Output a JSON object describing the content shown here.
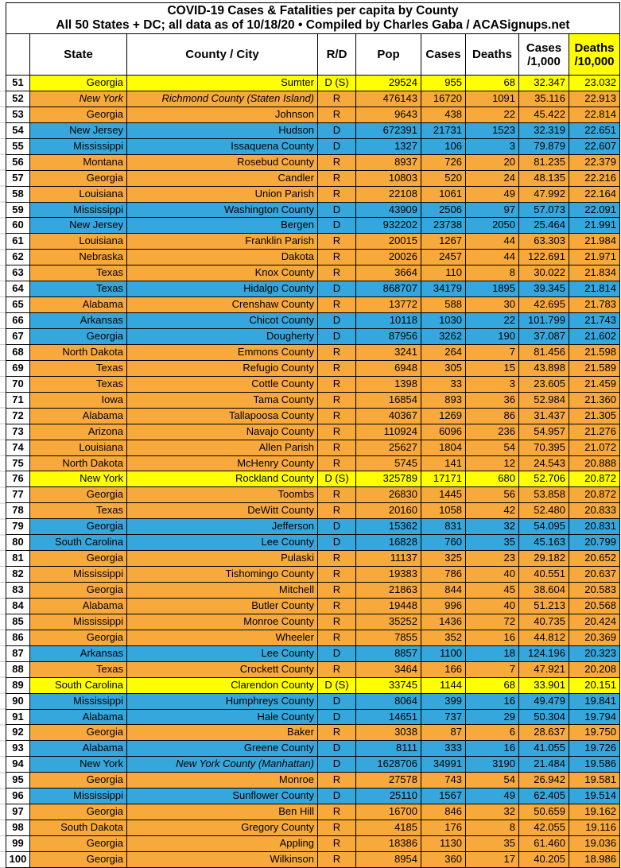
{
  "title": {
    "line1": "COVID-19 Cases & Fatalities per capita by County",
    "line2": "All 50 States + DC; all data as of 10/18/20  • Compiled by Charles Gaba / ACASignups.net"
  },
  "header": {
    "rank": "",
    "state": "State",
    "county": "County / City",
    "rd": "R/D",
    "pop": "Pop",
    "cases": "Cases",
    "deaths": "Deaths",
    "cases_per_1000_l1": "Cases",
    "cases_per_1000_l2": "/1,000",
    "deaths_per_10000_l1": "Deaths",
    "deaths_per_10000_l2": "/10,000"
  },
  "colors": {
    "republican_row": "#F8A93C",
    "democrat_row": "#35A7DD",
    "swing_row": "#FFFF00",
    "grid_line": "#000000"
  },
  "chart_data": {
    "type": "table",
    "title": "COVID-19 Cases & Fatalities per capita by County",
    "subtitle": "All 50 States + DC; all data as of 10/18/20 • Compiled by Charles Gaba / ACASignups.net",
    "columns": [
      "#",
      "State",
      "County / City",
      "R/D",
      "Pop",
      "Cases",
      "Deaths",
      "Cases /1,000",
      "Deaths /10,000"
    ],
    "row_color_legend": {
      "R": "republican_row",
      "D": "democrat_row",
      "D (S)": "swing_row"
    },
    "rows": [
      {
        "rank": 51,
        "state": "Georgia",
        "county": "Sumter",
        "rd": "D (S)",
        "pop": "29524",
        "cases": "955",
        "deaths": "68",
        "cases_per_1000": "32.347",
        "deaths_per_10000": "23.032"
      },
      {
        "rank": 52,
        "state": "New York",
        "county": "Richmond County (Staten Island)",
        "rd": "R",
        "pop": "476143",
        "cases": "16720",
        "deaths": "1091",
        "cases_per_1000": "35.116",
        "deaths_per_10000": "22.913",
        "italic": "both"
      },
      {
        "rank": 53,
        "state": "Georgia",
        "county": "Johnson",
        "rd": "R",
        "pop": "9643",
        "cases": "438",
        "deaths": "22",
        "cases_per_1000": "45.422",
        "deaths_per_10000": "22.814"
      },
      {
        "rank": 54,
        "state": "New Jersey",
        "county": "Hudson",
        "rd": "D",
        "pop": "672391",
        "cases": "21731",
        "deaths": "1523",
        "cases_per_1000": "32.319",
        "deaths_per_10000": "22.651"
      },
      {
        "rank": 55,
        "state": "Mississippi",
        "county": "Issaquena County",
        "rd": "D",
        "pop": "1327",
        "cases": "106",
        "deaths": "3",
        "cases_per_1000": "79.879",
        "deaths_per_10000": "22.607"
      },
      {
        "rank": 56,
        "state": "Montana",
        "county": "Rosebud County",
        "rd": "R",
        "pop": "8937",
        "cases": "726",
        "deaths": "20",
        "cases_per_1000": "81.235",
        "deaths_per_10000": "22.379"
      },
      {
        "rank": 57,
        "state": "Georgia",
        "county": "Candler",
        "rd": "R",
        "pop": "10803",
        "cases": "520",
        "deaths": "24",
        "cases_per_1000": "48.135",
        "deaths_per_10000": "22.216"
      },
      {
        "rank": 58,
        "state": "Louisiana",
        "county": "Union Parish",
        "rd": "R",
        "pop": "22108",
        "cases": "1061",
        "deaths": "49",
        "cases_per_1000": "47.992",
        "deaths_per_10000": "22.164"
      },
      {
        "rank": 59,
        "state": "Mississippi",
        "county": "Washington County",
        "rd": "D",
        "pop": "43909",
        "cases": "2506",
        "deaths": "97",
        "cases_per_1000": "57.073",
        "deaths_per_10000": "22.091"
      },
      {
        "rank": 60,
        "state": "New Jersey",
        "county": "Bergen",
        "rd": "D",
        "pop": "932202",
        "cases": "23738",
        "deaths": "2050",
        "cases_per_1000": "25.464",
        "deaths_per_10000": "21.991"
      },
      {
        "rank": 61,
        "state": "Louisiana",
        "county": "Franklin Parish",
        "rd": "R",
        "pop": "20015",
        "cases": "1267",
        "deaths": "44",
        "cases_per_1000": "63.303",
        "deaths_per_10000": "21.984"
      },
      {
        "rank": 62,
        "state": "Nebraska",
        "county": "Dakota",
        "rd": "R",
        "pop": "20026",
        "cases": "2457",
        "deaths": "44",
        "cases_per_1000": "122.691",
        "deaths_per_10000": "21.971"
      },
      {
        "rank": 63,
        "state": "Texas",
        "county": "Knox County",
        "rd": "R",
        "pop": "3664",
        "cases": "110",
        "deaths": "8",
        "cases_per_1000": "30.022",
        "deaths_per_10000": "21.834"
      },
      {
        "rank": 64,
        "state": "Texas",
        "county": "Hidalgo County",
        "rd": "D",
        "pop": "868707",
        "cases": "34179",
        "deaths": "1895",
        "cases_per_1000": "39.345",
        "deaths_per_10000": "21.814"
      },
      {
        "rank": 65,
        "state": "Alabama",
        "county": "Crenshaw County",
        "rd": "R",
        "pop": "13772",
        "cases": "588",
        "deaths": "30",
        "cases_per_1000": "42.695",
        "deaths_per_10000": "21.783"
      },
      {
        "rank": 66,
        "state": "Arkansas",
        "county": "Chicot County",
        "rd": "D",
        "pop": "10118",
        "cases": "1030",
        "deaths": "22",
        "cases_per_1000": "101.799",
        "deaths_per_10000": "21.743"
      },
      {
        "rank": 67,
        "state": "Georgia",
        "county": "Dougherty",
        "rd": "D",
        "pop": "87956",
        "cases": "3262",
        "deaths": "190",
        "cases_per_1000": "37.087",
        "deaths_per_10000": "21.602"
      },
      {
        "rank": 68,
        "state": "North Dakota",
        "county": "Emmons County",
        "rd": "R",
        "pop": "3241",
        "cases": "264",
        "deaths": "7",
        "cases_per_1000": "81.456",
        "deaths_per_10000": "21.598"
      },
      {
        "rank": 69,
        "state": "Texas",
        "county": "Refugio County",
        "rd": "R",
        "pop": "6948",
        "cases": "305",
        "deaths": "15",
        "cases_per_1000": "43.898",
        "deaths_per_10000": "21.589"
      },
      {
        "rank": 70,
        "state": "Texas",
        "county": "Cottle County",
        "rd": "R",
        "pop": "1398",
        "cases": "33",
        "deaths": "3",
        "cases_per_1000": "23.605",
        "deaths_per_10000": "21.459"
      },
      {
        "rank": 71,
        "state": "Iowa",
        "county": "Tama County",
        "rd": "R",
        "pop": "16854",
        "cases": "893",
        "deaths": "36",
        "cases_per_1000": "52.984",
        "deaths_per_10000": "21.360"
      },
      {
        "rank": 72,
        "state": "Alabama",
        "county": "Tallapoosa County",
        "rd": "R",
        "pop": "40367",
        "cases": "1269",
        "deaths": "86",
        "cases_per_1000": "31.437",
        "deaths_per_10000": "21.305"
      },
      {
        "rank": 73,
        "state": "Arizona",
        "county": "Navajo County",
        "rd": "R",
        "pop": "110924",
        "cases": "6096",
        "deaths": "236",
        "cases_per_1000": "54.957",
        "deaths_per_10000": "21.276"
      },
      {
        "rank": 74,
        "state": "Louisiana",
        "county": "Allen Parish",
        "rd": "R",
        "pop": "25627",
        "cases": "1804",
        "deaths": "54",
        "cases_per_1000": "70.395",
        "deaths_per_10000": "21.072"
      },
      {
        "rank": 75,
        "state": "North Dakota",
        "county": "McHenry County",
        "rd": "R",
        "pop": "5745",
        "cases": "141",
        "deaths": "12",
        "cases_per_1000": "24.543",
        "deaths_per_10000": "20.888"
      },
      {
        "rank": 76,
        "state": "New York",
        "county": "Rockland County",
        "rd": "D (S)",
        "pop": "325789",
        "cases": "17171",
        "deaths": "680",
        "cases_per_1000": "52.706",
        "deaths_per_10000": "20.872"
      },
      {
        "rank": 77,
        "state": "Georgia",
        "county": "Toombs",
        "rd": "R",
        "pop": "26830",
        "cases": "1445",
        "deaths": "56",
        "cases_per_1000": "53.858",
        "deaths_per_10000": "20.872"
      },
      {
        "rank": 78,
        "state": "Texas",
        "county": "DeWitt County",
        "rd": "R",
        "pop": "20160",
        "cases": "1058",
        "deaths": "42",
        "cases_per_1000": "52.480",
        "deaths_per_10000": "20.833"
      },
      {
        "rank": 79,
        "state": "Georgia",
        "county": "Jefferson",
        "rd": "D",
        "pop": "15362",
        "cases": "831",
        "deaths": "32",
        "cases_per_1000": "54.095",
        "deaths_per_10000": "20.831"
      },
      {
        "rank": 80,
        "state": "South Carolina",
        "county": "Lee County",
        "rd": "D",
        "pop": "16828",
        "cases": "760",
        "deaths": "35",
        "cases_per_1000": "45.163",
        "deaths_per_10000": "20.799"
      },
      {
        "rank": 81,
        "state": "Georgia",
        "county": "Pulaski",
        "rd": "R",
        "pop": "11137",
        "cases": "325",
        "deaths": "23",
        "cases_per_1000": "29.182",
        "deaths_per_10000": "20.652"
      },
      {
        "rank": 82,
        "state": "Mississippi",
        "county": "Tishomingo County",
        "rd": "R",
        "pop": "19383",
        "cases": "786",
        "deaths": "40",
        "cases_per_1000": "40.551",
        "deaths_per_10000": "20.637"
      },
      {
        "rank": 83,
        "state": "Georgia",
        "county": "Mitchell",
        "rd": "R",
        "pop": "21863",
        "cases": "844",
        "deaths": "45",
        "cases_per_1000": "38.604",
        "deaths_per_10000": "20.583"
      },
      {
        "rank": 84,
        "state": "Alabama",
        "county": "Butler County",
        "rd": "R",
        "pop": "19448",
        "cases": "996",
        "deaths": "40",
        "cases_per_1000": "51.213",
        "deaths_per_10000": "20.568"
      },
      {
        "rank": 85,
        "state": "Mississippi",
        "county": "Monroe County",
        "rd": "R",
        "pop": "35252",
        "cases": "1436",
        "deaths": "72",
        "cases_per_1000": "40.735",
        "deaths_per_10000": "20.424"
      },
      {
        "rank": 86,
        "state": "Georgia",
        "county": "Wheeler",
        "rd": "R",
        "pop": "7855",
        "cases": "352",
        "deaths": "16",
        "cases_per_1000": "44.812",
        "deaths_per_10000": "20.369"
      },
      {
        "rank": 87,
        "state": "Arkansas",
        "county": "Lee County",
        "rd": "D",
        "pop": "8857",
        "cases": "1100",
        "deaths": "18",
        "cases_per_1000": "124.196",
        "deaths_per_10000": "20.323"
      },
      {
        "rank": 88,
        "state": "Texas",
        "county": "Crockett County",
        "rd": "R",
        "pop": "3464",
        "cases": "166",
        "deaths": "7",
        "cases_per_1000": "47.921",
        "deaths_per_10000": "20.208"
      },
      {
        "rank": 89,
        "state": "South Carolina",
        "county": "Clarendon County",
        "rd": "D (S)",
        "pop": "33745",
        "cases": "1144",
        "deaths": "68",
        "cases_per_1000": "33.901",
        "deaths_per_10000": "20.151"
      },
      {
        "rank": 90,
        "state": "Mississippi",
        "county": "Humphreys County",
        "rd": "D",
        "pop": "8064",
        "cases": "399",
        "deaths": "16",
        "cases_per_1000": "49.479",
        "deaths_per_10000": "19.841"
      },
      {
        "rank": 91,
        "state": "Alabama",
        "county": "Hale County",
        "rd": "D",
        "pop": "14651",
        "cases": "737",
        "deaths": "29",
        "cases_per_1000": "50.304",
        "deaths_per_10000": "19.794"
      },
      {
        "rank": 92,
        "state": "Georgia",
        "county": "Baker",
        "rd": "R",
        "pop": "3038",
        "cases": "87",
        "deaths": "6",
        "cases_per_1000": "28.637",
        "deaths_per_10000": "19.750"
      },
      {
        "rank": 93,
        "state": "Alabama",
        "county": "Greene County",
        "rd": "D",
        "pop": "8111",
        "cases": "333",
        "deaths": "16",
        "cases_per_1000": "41.055",
        "deaths_per_10000": "19.726"
      },
      {
        "rank": 94,
        "state": "New York",
        "county": "New York County (Manhattan)",
        "rd": "D",
        "pop": "1628706",
        "cases": "34991",
        "deaths": "3190",
        "cases_per_1000": "21.484",
        "deaths_per_10000": "19.586",
        "italic": "county"
      },
      {
        "rank": 95,
        "state": "Georgia",
        "county": "Monroe",
        "rd": "R",
        "pop": "27578",
        "cases": "743",
        "deaths": "54",
        "cases_per_1000": "26.942",
        "deaths_per_10000": "19.581"
      },
      {
        "rank": 96,
        "state": "Mississippi",
        "county": "Sunflower County",
        "rd": "D",
        "pop": "25110",
        "cases": "1567",
        "deaths": "49",
        "cases_per_1000": "62.405",
        "deaths_per_10000": "19.514"
      },
      {
        "rank": 97,
        "state": "Georgia",
        "county": "Ben Hill",
        "rd": "R",
        "pop": "16700",
        "cases": "846",
        "deaths": "32",
        "cases_per_1000": "50.659",
        "deaths_per_10000": "19.162"
      },
      {
        "rank": 98,
        "state": "South Dakota",
        "county": "Gregory County",
        "rd": "R",
        "pop": "4185",
        "cases": "176",
        "deaths": "8",
        "cases_per_1000": "42.055",
        "deaths_per_10000": "19.116"
      },
      {
        "rank": 99,
        "state": "Georgia",
        "county": "Appling",
        "rd": "R",
        "pop": "18386",
        "cases": "1130",
        "deaths": "35",
        "cases_per_1000": "61.460",
        "deaths_per_10000": "19.036"
      },
      {
        "rank": 100,
        "state": "Georgia",
        "county": "Wilkinson",
        "rd": "R",
        "pop": "8954",
        "cases": "360",
        "deaths": "17",
        "cases_per_1000": "40.205",
        "deaths_per_10000": "18.986"
      }
    ]
  }
}
